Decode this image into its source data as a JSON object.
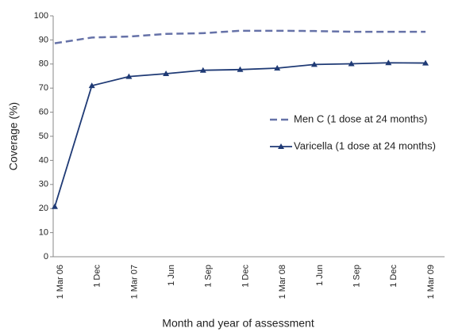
{
  "chart_data": {
    "type": "line",
    "x_label": "Month and year of assessment",
    "y_label": "Coverage (%)",
    "categories": [
      "1 Mar 06",
      "1 Dec",
      "1 Mar 07",
      "1 Jun",
      "1 Sep",
      "1 Dec",
      "1 Mar 08",
      "1 Jun",
      "1 Sep",
      "1 Dec",
      "1 Mar 09"
    ],
    "series": [
      {
        "name": "Men C (1 dose at 24 months)",
        "color": "#6672a8",
        "line_style": "dashed",
        "marker": "none",
        "values": [
          88.6,
          91,
          91.4,
          92.5,
          92.8,
          93.8,
          93.8,
          93.7,
          93.4,
          93.4,
          93.4
        ]
      },
      {
        "name": "Varicella (1 dose at 24 months)",
        "color": "#1f3a75",
        "line_style": "solid",
        "marker": "triangle",
        "values": [
          20.8,
          71,
          74.8,
          76,
          77.4,
          77.7,
          78.3,
          79.8,
          80.1,
          80.5,
          80.4
        ]
      }
    ],
    "ylim": [
      0,
      100
    ],
    "yticks": [
      0,
      10,
      20,
      30,
      40,
      50,
      60,
      70,
      80,
      90,
      100
    ],
    "grid": false
  }
}
